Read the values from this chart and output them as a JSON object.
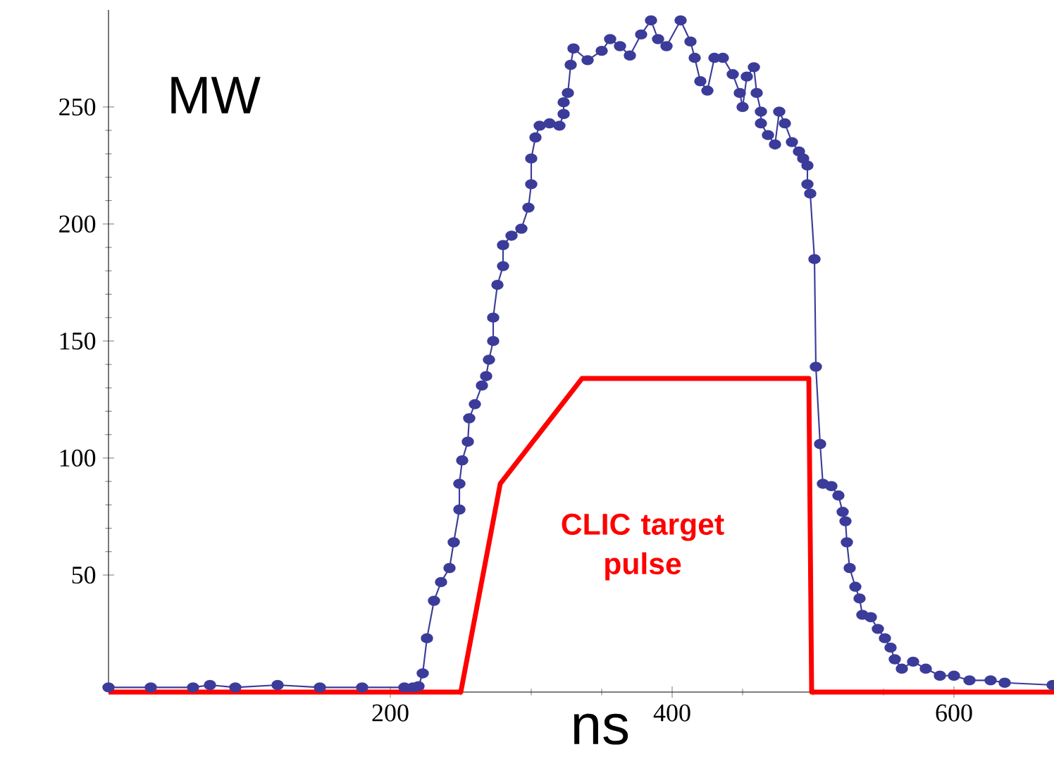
{
  "chart_data": {
    "type": "line",
    "xlabel": "ns",
    "ylabel": "MW",
    "xlim": [
      0,
      671
    ],
    "ylim": [
      0,
      291.5
    ],
    "xticks": [
      200,
      400,
      600
    ],
    "yticks": [
      50,
      100,
      150,
      200,
      250
    ],
    "legend": false,
    "grid": false,
    "series": [
      {
        "color": "#3b3c9a",
        "marker": "circle",
        "x": [
          0,
          30,
          60,
          72,
          90,
          120,
          150,
          180,
          210,
          216,
          220,
          223,
          226,
          231,
          236,
          242,
          245,
          249,
          249,
          251,
          255,
          256,
          260,
          265,
          268,
          270,
          273,
          273,
          276,
          280,
          280,
          286,
          293,
          298,
          300,
          300,
          303,
          306,
          313,
          320,
          323,
          323,
          326,
          328,
          330,
          340,
          350,
          356,
          363,
          370,
          378,
          385,
          390,
          396,
          406,
          413,
          416,
          420,
          425,
          430,
          436,
          443,
          448,
          450,
          453,
          458,
          460,
          463,
          463,
          468,
          473,
          476,
          480,
          485,
          490,
          493,
          496,
          496,
          498,
          501,
          502,
          505,
          507,
          513,
          518,
          521,
          523,
          524,
          526,
          530,
          533,
          535,
          541,
          546,
          551,
          555,
          558,
          563,
          571,
          580,
          590,
          600,
          611,
          626,
          636,
          670
        ],
        "values": [
          2,
          2,
          2,
          3,
          2,
          3,
          2,
          2,
          2,
          2,
          2.5,
          8,
          23,
          39,
          47,
          53,
          64,
          78,
          89,
          99,
          107,
          117,
          123,
          131,
          135,
          142,
          150,
          160,
          174,
          182,
          191,
          195,
          198,
          207,
          217,
          228,
          237,
          242,
          243,
          242,
          247,
          252,
          256,
          268,
          275,
          270,
          274,
          279,
          276,
          272,
          281,
          287,
          279,
          276,
          287,
          278,
          271,
          261,
          257,
          271,
          271,
          264,
          256,
          250,
          263,
          267,
          256,
          248,
          243,
          238,
          234,
          248,
          243,
          235,
          231,
          228,
          225,
          217,
          213,
          185,
          139,
          106,
          89,
          88,
          84,
          77,
          73,
          64,
          53,
          45,
          40,
          33,
          32,
          27,
          23,
          19,
          14,
          10,
          13,
          10,
          7,
          7,
          5,
          5,
          4,
          3
        ]
      },
      {
        "name": "CLIC target pulse",
        "color": "#ff0000",
        "marker": "none",
        "x": [
          0,
          250,
          278,
          336,
          497,
          499,
          671
        ],
        "values": [
          0,
          0,
          89,
          134,
          134,
          0,
          0
        ]
      }
    ]
  }
}
